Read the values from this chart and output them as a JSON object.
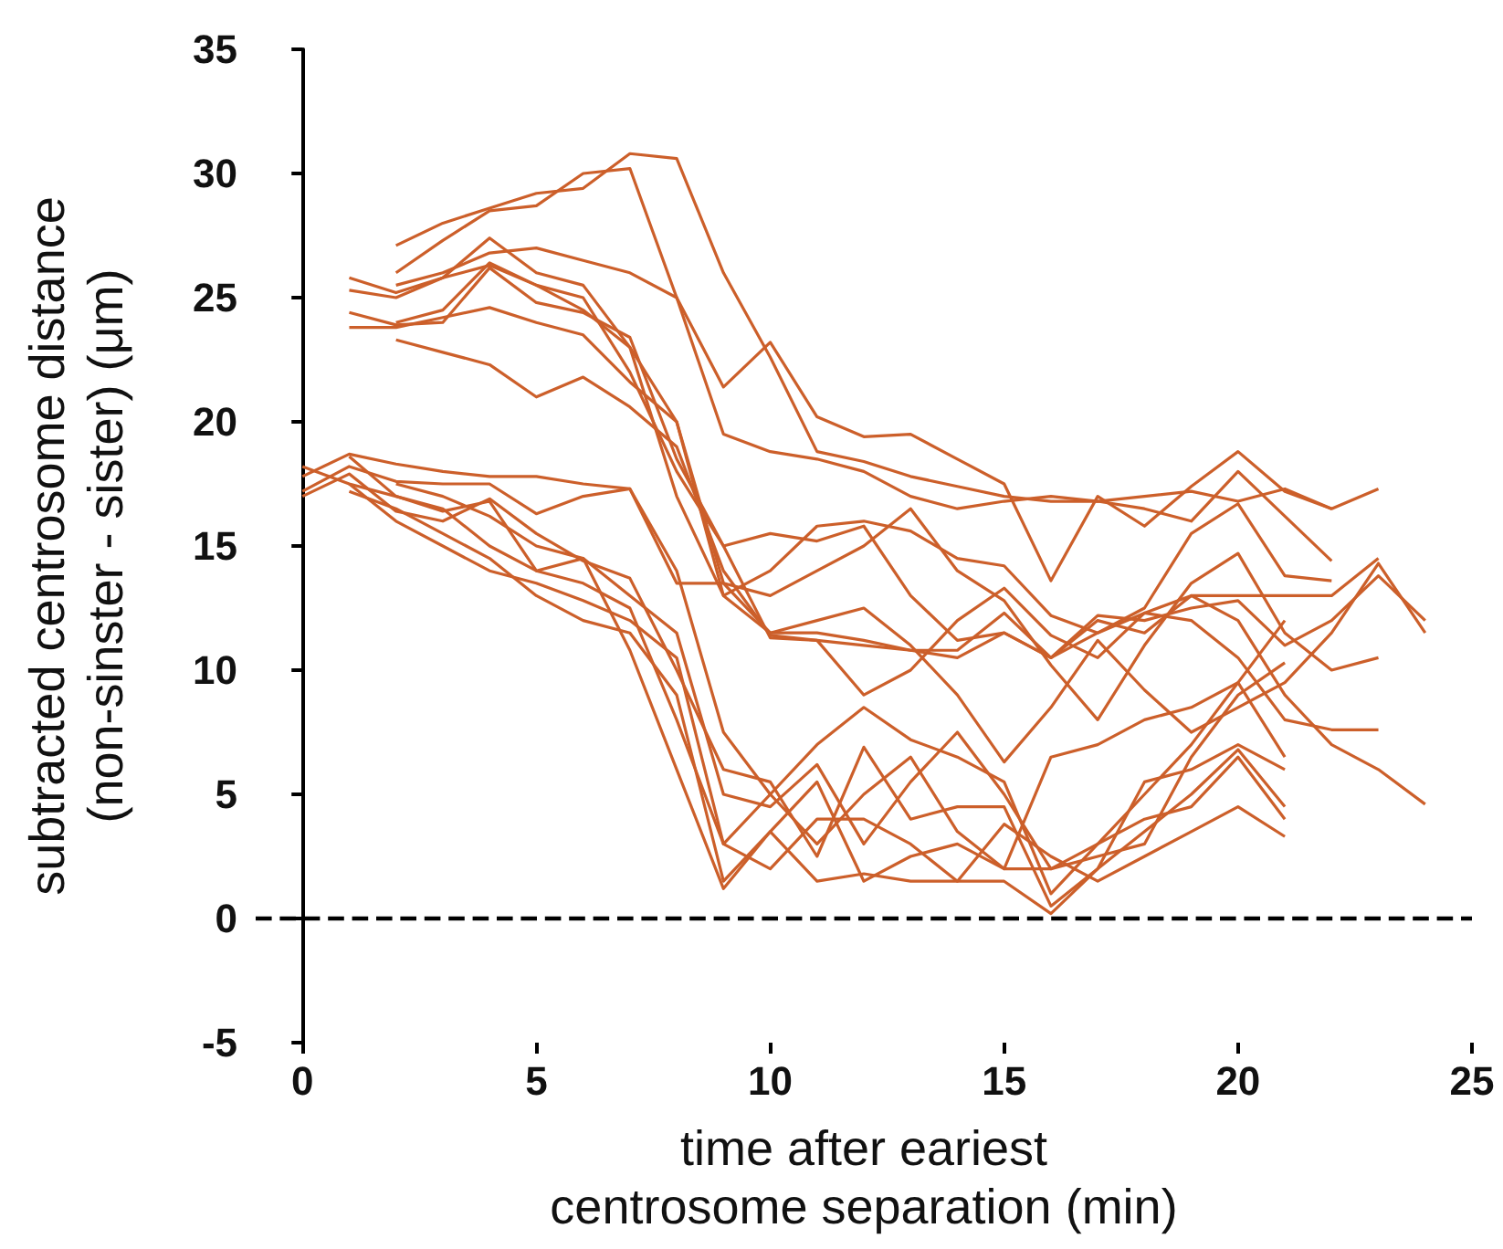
{
  "chart_data": {
    "type": "line",
    "xlabel": "time after eariest\ncentrosome separation (min)",
    "ylabel": "subtracted centrosome distance\n(non-sinster - sister) (μm)",
    "xlim": [
      -1,
      25
    ],
    "xticks": [
      0,
      5,
      10,
      15,
      20,
      25
    ],
    "ylim": [
      -5,
      35
    ],
    "yticks": [
      -5,
      0,
      5,
      10,
      15,
      20,
      25,
      30,
      35
    ],
    "grid": false,
    "marker": "none",
    "line_style": "solid",
    "ref_lines": [
      {
        "axis": "y",
        "value": 0,
        "color": "#000000",
        "line_style": "dashed"
      }
    ],
    "series": [
      {
        "color": "#cc5f2a",
        "x": [
          2,
          3,
          4,
          5,
          6,
          7,
          8,
          9,
          10,
          11,
          12,
          13,
          14,
          15,
          16,
          17,
          18,
          19,
          20,
          21,
          22,
          23
        ],
        "values": [
          27.1,
          28.0,
          28.6,
          29.2,
          29.4,
          30.8,
          30.6,
          26.0,
          22.6,
          18.8,
          18.4,
          17.8,
          17.4,
          17.0,
          16.8,
          16.8,
          17.0,
          17.2,
          16.8,
          17.3,
          16.5,
          17.3
        ]
      },
      {
        "color": "#cc5f2a",
        "x": [
          2,
          3,
          4,
          5,
          6,
          7,
          8,
          9,
          10,
          11,
          12,
          13,
          14,
          15,
          16,
          17,
          18,
          19,
          20,
          21,
          22
        ],
        "values": [
          26.0,
          27.3,
          28.5,
          28.7,
          30.0,
          30.2,
          25.0,
          21.4,
          23.2,
          20.2,
          19.4,
          19.5,
          18.5,
          17.5,
          13.6,
          17.0,
          15.8,
          17.4,
          18.8,
          17.2,
          16.5
        ]
      },
      {
        "color": "#cc5f2a",
        "x": [
          2,
          3,
          4,
          5,
          6,
          7,
          8,
          9,
          10,
          11,
          12,
          13,
          14,
          15,
          16,
          17,
          18,
          19,
          20,
          21,
          22
        ],
        "values": [
          25.5,
          26.0,
          26.8,
          27.0,
          26.5,
          26.0,
          25.0,
          19.5,
          18.8,
          18.5,
          18.0,
          17.0,
          16.5,
          16.8,
          17.0,
          16.8,
          16.5,
          16.0,
          18.0,
          16.2,
          14.4
        ]
      },
      {
        "color": "#cc5f2a",
        "x": [
          1,
          2,
          3,
          4,
          5,
          6,
          7,
          8,
          9,
          10,
          11,
          12,
          13,
          14,
          15,
          16,
          17,
          18,
          19,
          20,
          21,
          22
        ],
        "values": [
          25.8,
          25.2,
          25.8,
          27.4,
          26.0,
          25.5,
          23.0,
          17.0,
          13.0,
          14.0,
          15.8,
          16.0,
          15.6,
          14.5,
          14.2,
          12.2,
          11.5,
          12.5,
          15.5,
          16.7,
          13.8,
          13.6
        ]
      },
      {
        "color": "#cc5f2a",
        "x": [
          1,
          2,
          3,
          4,
          5,
          6,
          7,
          8,
          9,
          10,
          11,
          12,
          13,
          14,
          15,
          16,
          17,
          18,
          19,
          20,
          21,
          22,
          23
        ],
        "values": [
          25.3,
          25.0,
          25.8,
          26.3,
          25.5,
          25.0,
          22.0,
          18.0,
          15.0,
          15.5,
          15.2,
          15.8,
          13.0,
          11.2,
          11.5,
          10.5,
          12.0,
          11.5,
          13.0,
          13.0,
          13.0,
          13.0,
          14.5
        ]
      },
      {
        "color": "#cc5f2a",
        "x": [
          2,
          3,
          4,
          5,
          6,
          7,
          8,
          9,
          10,
          11,
          12,
          13,
          14,
          15,
          16,
          17,
          18,
          19,
          20,
          21,
          22,
          23
        ],
        "values": [
          24.0,
          24.5,
          26.4,
          25.5,
          24.5,
          23.0,
          20.0,
          13.5,
          13.0,
          14.0,
          15.0,
          16.5,
          14.0,
          12.8,
          10.2,
          8.0,
          11.0,
          13.5,
          14.7,
          11.5,
          10.0,
          10.5
        ]
      },
      {
        "color": "#cc5f2a",
        "x": [
          1,
          2,
          3,
          4,
          5,
          6,
          7,
          8,
          9,
          10,
          11,
          12,
          13,
          14,
          15,
          16,
          17,
          18,
          19,
          20,
          21,
          22,
          23
        ],
        "values": [
          24.4,
          23.9,
          24.0,
          26.2,
          24.8,
          24.4,
          23.4,
          18.5,
          15.0,
          11.3,
          11.2,
          11.0,
          10.8,
          10.8,
          12.3,
          10.5,
          11.5,
          12.3,
          12.0,
          10.5,
          8.0,
          7.6,
          7.6
        ]
      },
      {
        "color": "#cc5f2a",
        "x": [
          1,
          2,
          3,
          4,
          5,
          6,
          7,
          8,
          9,
          10,
          11,
          12,
          13,
          14,
          15,
          16,
          17,
          18,
          19,
          20,
          21,
          22,
          23,
          24
        ],
        "values": [
          23.8,
          23.8,
          24.2,
          24.6,
          24.0,
          23.5,
          21.6,
          20.0,
          13.0,
          11.5,
          12.0,
          12.5,
          11.0,
          9.0,
          6.3,
          8.5,
          11.2,
          9.2,
          7.5,
          8.5,
          9.5,
          11.5,
          14.3,
          11.5
        ]
      },
      {
        "color": "#cc5f2a",
        "x": [
          2,
          3,
          4,
          5,
          6,
          7,
          8,
          9,
          10,
          11,
          12,
          13,
          14,
          15,
          16,
          17,
          18,
          19,
          20,
          21,
          22,
          23,
          24
        ],
        "values": [
          23.3,
          22.8,
          22.3,
          21.0,
          21.8,
          20.6,
          19.0,
          14.0,
          11.4,
          11.2,
          9.0,
          10.0,
          12.0,
          13.3,
          11.4,
          10.5,
          12.3,
          13.0,
          12.0,
          9.0,
          7.0,
          6.0,
          4.6
        ]
      },
      {
        "color": "#cc5f2a",
        "x": [
          0,
          1,
          2,
          3,
          4,
          5,
          6,
          7,
          8,
          9,
          10,
          11,
          12,
          13,
          14,
          15,
          16,
          17,
          18,
          19,
          20,
          21,
          22,
          23,
          24
        ],
        "values": [
          17.8,
          18.7,
          18.3,
          18.0,
          17.8,
          17.8,
          17.5,
          17.3,
          13.5,
          13.5,
          11.5,
          11.5,
          11.2,
          10.8,
          10.5,
          11.5,
          10.5,
          12.2,
          12.0,
          12.5,
          12.8,
          11.0,
          12.0,
          13.8,
          12.0
        ]
      },
      {
        "color": "#cc5f2a",
        "x": [
          0,
          1,
          2,
          3,
          4,
          5,
          6,
          7,
          8,
          9,
          10,
          11,
          12,
          13,
          14,
          15,
          16,
          17,
          18,
          19,
          20,
          21
        ],
        "values": [
          17.2,
          18.2,
          17.6,
          17.5,
          17.5,
          16.3,
          17.0,
          17.3,
          14.0,
          7.5,
          5.0,
          7.0,
          8.5,
          7.2,
          6.5,
          5.5,
          1.0,
          3.0,
          5.0,
          7.0,
          9.5,
          6.5
        ]
      },
      {
        "color": "#cc5f2a",
        "x": [
          0,
          1,
          2,
          3,
          4,
          5,
          6,
          7,
          8,
          9,
          10,
          11,
          12,
          13,
          14,
          15,
          16,
          17,
          18,
          19,
          20,
          21
        ],
        "values": [
          17.0,
          17.9,
          16.4,
          16.0,
          16.9,
          15.5,
          14.4,
          13.7,
          10.0,
          6.0,
          5.5,
          2.5,
          6.9,
          4.0,
          4.5,
          4.5,
          0.5,
          2.0,
          5.5,
          6.0,
          7.0,
          6.0
        ]
      },
      {
        "color": "#cc5f2a",
        "x": [
          0,
          1,
          2,
          3,
          4,
          5,
          6,
          7,
          8,
          9,
          10,
          11,
          12,
          13,
          14,
          15,
          16,
          17,
          18,
          19,
          20,
          21
        ],
        "values": [
          18.2,
          17.5,
          17.0,
          16.5,
          15.0,
          14.0,
          13.5,
          12.5,
          8.0,
          3.0,
          5.0,
          3.0,
          5.0,
          6.5,
          3.5,
          2.0,
          6.5,
          7.0,
          8.0,
          8.5,
          9.5,
          12.0
        ]
      },
      {
        "color": "#cc5f2a",
        "x": [
          1,
          2,
          3,
          4,
          5,
          6,
          7,
          8,
          9,
          10,
          11,
          12,
          13,
          14,
          15,
          16,
          17,
          18,
          19,
          20,
          21
        ],
        "values": [
          17.5,
          16.0,
          15.0,
          14.0,
          13.5,
          12.8,
          12.0,
          10.5,
          3.0,
          2.0,
          4.0,
          4.0,
          3.0,
          1.5,
          1.5,
          0.2,
          2.0,
          3.5,
          5.0,
          6.8,
          4.5
        ]
      },
      {
        "color": "#cc5f2a",
        "x": [
          1,
          2,
          3,
          4,
          5,
          6,
          7,
          8,
          9,
          10,
          11,
          12,
          13,
          14,
          15,
          16,
          17,
          18,
          19,
          20,
          21
        ],
        "values": [
          17.2,
          16.5,
          15.5,
          14.5,
          13.0,
          12.0,
          11.5,
          9.0,
          1.5,
          3.5,
          5.5,
          1.5,
          2.5,
          3.0,
          2.0,
          2.0,
          3.0,
          4.0,
          4.5,
          6.5,
          4.0
        ]
      },
      {
        "color": "#cc5f2a",
        "x": [
          1,
          2,
          3,
          4,
          5,
          6,
          7,
          8,
          9,
          10,
          11,
          12,
          13,
          14,
          15,
          16,
          17,
          18,
          19,
          20,
          21
        ],
        "values": [
          18.6,
          17.0,
          16.4,
          16.8,
          14.0,
          14.5,
          10.8,
          6.0,
          1.2,
          3.5,
          1.5,
          1.8,
          1.5,
          1.5,
          3.8,
          2.5,
          1.5,
          2.5,
          3.5,
          4.5,
          3.3
        ]
      },
      {
        "color": "#cc5f2a",
        "x": [
          2,
          3,
          4,
          5,
          6,
          7,
          8,
          9,
          10,
          11,
          12,
          13,
          14,
          15,
          16,
          17,
          18,
          19,
          20,
          21
        ],
        "values": [
          17.5,
          17.0,
          16.2,
          15.0,
          14.5,
          13.0,
          11.5,
          5.0,
          4.5,
          6.2,
          3.0,
          5.5,
          7.5,
          5.0,
          2.0,
          2.5,
          3.0,
          6.5,
          9.0,
          10.3
        ]
      }
    ]
  }
}
